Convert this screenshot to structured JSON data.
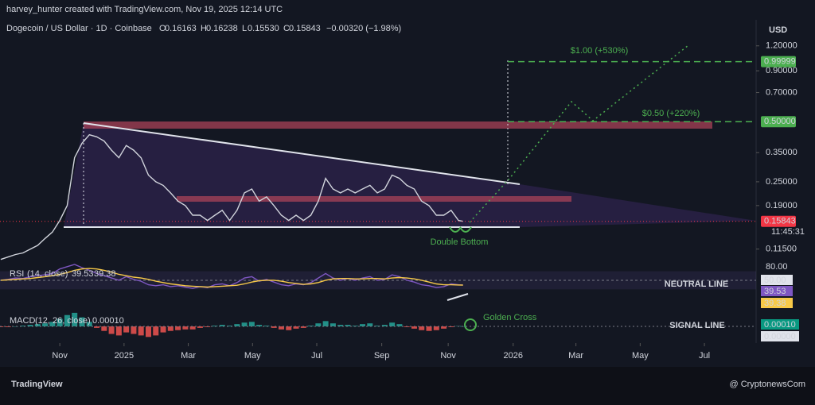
{
  "header": {
    "byline": "harvey_hunter created with TradingView.com, Nov 19, 2025 12:14 UTC",
    "symbol": "Dogecoin / US Dollar · 1D · Coinbase",
    "ohlc": [
      {
        "key": "O",
        "value": "0.16163"
      },
      {
        "key": "H",
        "value": "0.16238"
      },
      {
        "key": "L",
        "value": "0.15530"
      },
      {
        "key": "C",
        "value": "0.15843"
      }
    ],
    "change": "−0.00320 (−1.98%)"
  },
  "currency": "USD",
  "countdown": "11:45:31",
  "annotations": {
    "target_high": "$1.00 (+530%)",
    "target_mid": "$0.50 (+220%)",
    "pattern": "Double Bottom",
    "cross": "Golden Cross"
  },
  "footer": {
    "brand": "TradingView",
    "source": "@ CryptonewsCom"
  },
  "chart_data": [
    {
      "type": "line",
      "log_scale": true,
      "color": "#d1d4dc",
      "x": [
        -8,
        -7,
        -6,
        -5,
        -4,
        -3,
        -2,
        -1,
        0,
        1,
        2,
        3,
        4,
        5,
        6,
        7,
        8,
        9,
        10,
        11,
        12,
        13,
        14,
        15,
        16,
        17,
        18,
        19,
        20,
        21,
        22,
        23,
        24,
        25,
        26,
        27,
        28,
        29,
        30,
        31,
        32,
        33,
        34,
        35,
        36,
        37,
        38,
        39,
        40,
        41,
        42,
        43,
        44,
        45,
        46,
        47,
        48,
        49,
        50,
        51,
        52,
        53,
        54,
        54.6
      ],
      "values": [
        0.102,
        0.105,
        0.108,
        0.11,
        0.115,
        0.12,
        0.13,
        0.14,
        0.16,
        0.19,
        0.33,
        0.39,
        0.43,
        0.42,
        0.4,
        0.36,
        0.33,
        0.38,
        0.36,
        0.33,
        0.27,
        0.25,
        0.24,
        0.22,
        0.2,
        0.19,
        0.17,
        0.17,
        0.16,
        0.17,
        0.18,
        0.16,
        0.18,
        0.22,
        0.23,
        0.2,
        0.21,
        0.19,
        0.17,
        0.16,
        0.17,
        0.16,
        0.17,
        0.2,
        0.26,
        0.23,
        0.22,
        0.23,
        0.22,
        0.23,
        0.24,
        0.22,
        0.23,
        0.27,
        0.26,
        0.24,
        0.23,
        0.2,
        0.19,
        0.17,
        0.17,
        0.18,
        0.16,
        0.15843
      ],
      "xlim": [
        -8.1,
        94.3
      ],
      "xticks": [
        {
          "value": 0,
          "label": "Nov"
        },
        {
          "value": 8.7,
          "label": "2025"
        },
        {
          "value": 17.4,
          "label": "Mar"
        },
        {
          "value": 26.1,
          "label": "May"
        },
        {
          "value": 34.8,
          "label": "Jul"
        },
        {
          "value": 43.6,
          "label": "Sep"
        },
        {
          "value": 52.6,
          "label": "Nov"
        },
        {
          "value": 61.4,
          "label": "2026"
        },
        {
          "value": 69.9,
          "label": "Mar"
        },
        {
          "value": 78.6,
          "label": "May"
        },
        {
          "value": 87.3,
          "label": "Jul"
        }
      ],
      "ylim": [
        0.099,
        1.62
      ],
      "yticks": [
        {
          "value": 1.2,
          "label": "1.20000"
        },
        {
          "value": 0.9,
          "label": "0.90000"
        },
        {
          "value": 0.7,
          "label": "0.70000"
        },
        {
          "value": 0.35,
          "label": "0.35000"
        },
        {
          "value": 0.25,
          "label": "0.25000"
        },
        {
          "value": 0.19,
          "label": "0.19000"
        },
        {
          "value": 0.115,
          "label": "0.11500"
        }
      ],
      "tags": [
        {
          "value": 0.99999,
          "label": "0.99999",
          "color": "#4caf50"
        },
        {
          "value": 0.5,
          "label": "0.50000",
          "color": "#4caf50"
        },
        {
          "value": 0.15843,
          "label": "0.15843",
          "color": "#f23645"
        }
      ]
    },
    {
      "type": "line",
      "title": "RSI",
      "params": "(14, close)",
      "series": [
        {
          "color": "#7e57c2",
          "values": [
            50,
            52,
            55,
            54,
            58,
            60,
            62,
            65,
            75,
            80,
            85,
            78,
            72,
            65,
            60,
            55,
            50,
            58,
            52,
            48,
            40,
            38,
            40,
            36,
            38,
            35,
            32,
            36,
            34,
            40,
            42,
            38,
            45,
            55,
            58,
            48,
            52,
            46,
            40,
            38,
            42,
            40,
            45,
            55,
            65,
            55,
            50,
            54,
            50,
            55,
            58,
            50,
            52,
            62,
            58,
            50,
            46,
            40,
            38,
            34,
            36,
            42,
            40,
            39.53
          ],
          "value_label": "39.53"
        },
        {
          "color": "#f7c948",
          "values": [
            50,
            51,
            52,
            53,
            54,
            56,
            58,
            60,
            63,
            67,
            72,
            75,
            76,
            75,
            72,
            68,
            63,
            60,
            57,
            55,
            52,
            48,
            45,
            42,
            40,
            38,
            37,
            36,
            35,
            36,
            37,
            38,
            39,
            42,
            46,
            49,
            50,
            50,
            48,
            45,
            43,
            41,
            42,
            45,
            50,
            53,
            54,
            54,
            53,
            53,
            54,
            54,
            53,
            55,
            56,
            55,
            53,
            50,
            46,
            42,
            40,
            40,
            39.5,
            39.38
          ],
          "value_label": "39.38"
        }
      ],
      "ylim": [
        -8,
        85
      ],
      "yticks": [
        {
          "value": 80,
          "label": "80.00"
        }
      ],
      "neutral": {
        "value": 50,
        "label": "50.00"
      },
      "neutral_label": "NEUTRAL LINE"
    },
    {
      "type": "bar",
      "title": "MACD",
      "params": "(12, 26, close)",
      "values": [
        -0.001,
        -0.001,
        0,
        0.001,
        0.002,
        0.003,
        0.004,
        0.006,
        0.01,
        0.015,
        0.018,
        0.012,
        0.006,
        -0.002,
        -0.006,
        -0.01,
        -0.012,
        -0.008,
        -0.01,
        -0.012,
        -0.014,
        -0.012,
        -0.008,
        -0.006,
        -0.005,
        -0.004,
        -0.004,
        -0.002,
        -0.001,
        0.001,
        0.002,
        0.001,
        0.003,
        0.005,
        0.006,
        0.002,
        0.001,
        -0.002,
        -0.004,
        -0.005,
        -0.003,
        -0.002,
        0.001,
        0.004,
        0.007,
        0.004,
        0.002,
        0.002,
        0.001,
        0.003,
        0.004,
        0.001,
        0.002,
        0.005,
        0.003,
        -0.001,
        -0.003,
        -0.005,
        -0.006,
        -0.005,
        -0.003,
        -0.001,
        0.0005,
        0.0001
      ],
      "colors": {
        "positive": "#26a69a",
        "negative": "#ef5350"
      },
      "ylim": [
        -0.02,
        0.02
      ],
      "tags": [
        {
          "value": 0.0001,
          "label": "0.00010",
          "color": "#089981"
        },
        {
          "value": 0,
          "label": "0.00000",
          "color": "#e0e3eb"
        }
      ],
      "signal_label": "SIGNAL LINE"
    }
  ]
}
